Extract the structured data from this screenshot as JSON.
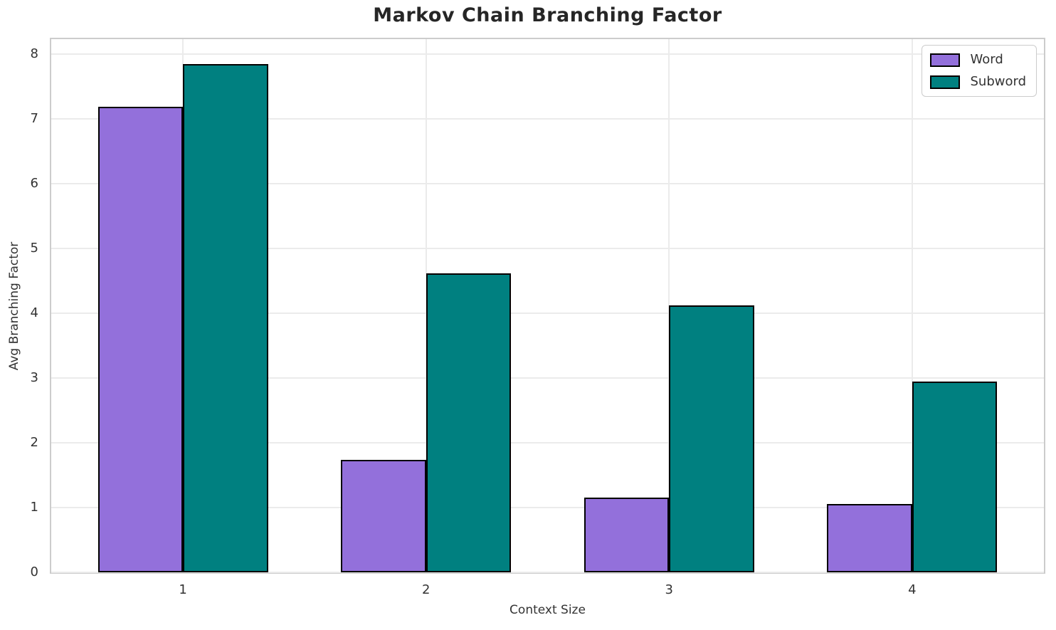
{
  "chart_data": {
    "type": "bar",
    "title": "Markov Chain Branching Factor",
    "xlabel": "Context Size",
    "ylabel": "Avg Branching Factor",
    "categories": [
      "1",
      "2",
      "3",
      "4"
    ],
    "x": [
      1,
      2,
      3,
      4
    ],
    "series": [
      {
        "name": "Word",
        "color": "#9370DB",
        "edge_color": "#000000",
        "values": [
          7.19,
          1.74,
          1.15,
          1.05
        ]
      },
      {
        "name": "Subword",
        "color": "#008080",
        "edge_color": "#000000",
        "values": [
          7.85,
          4.62,
          4.12,
          2.94
        ]
      }
    ],
    "ylim": [
      0,
      8.23
    ],
    "xlim": [
      0.458,
      4.542
    ],
    "yticks": [
      0,
      1,
      2,
      3,
      4,
      5,
      6,
      7,
      8
    ],
    "bar_width_data_units": 0.35,
    "grid": true,
    "grid_color": "#ebebeb",
    "spine_color": "#cccccc",
    "legend_position": "upper right"
  }
}
